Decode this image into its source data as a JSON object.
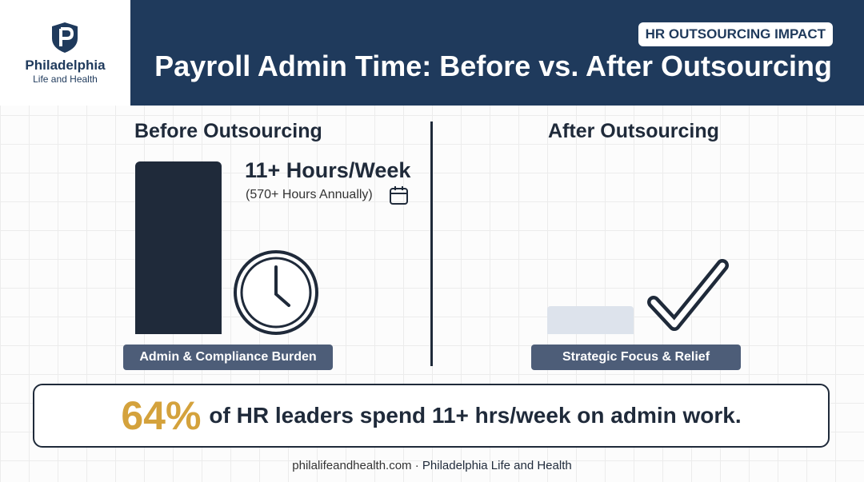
{
  "logo": {
    "name": "Philadelphia",
    "tagline": "Life and Health"
  },
  "header": {
    "badge": "HR OUTSOURCING IMPACT",
    "title": "Payroll Admin Time: Before vs. After Outsourcing"
  },
  "before": {
    "heading": "Before Outsourcing",
    "stat": "11+ Hours/Week",
    "substat": "(570+ Hours Annually)",
    "label": "Admin & Compliance Burden"
  },
  "after": {
    "heading": "After Outsourcing",
    "label": "Strategic Focus & Relief"
  },
  "callout": {
    "highlight": "64%",
    "text": "of HR leaders spend 11+ hrs/week on admin work."
  },
  "footer": {
    "site": "philalifeandhealth.com",
    "separator": "·",
    "org": "Philadelphia Life and Health"
  }
}
